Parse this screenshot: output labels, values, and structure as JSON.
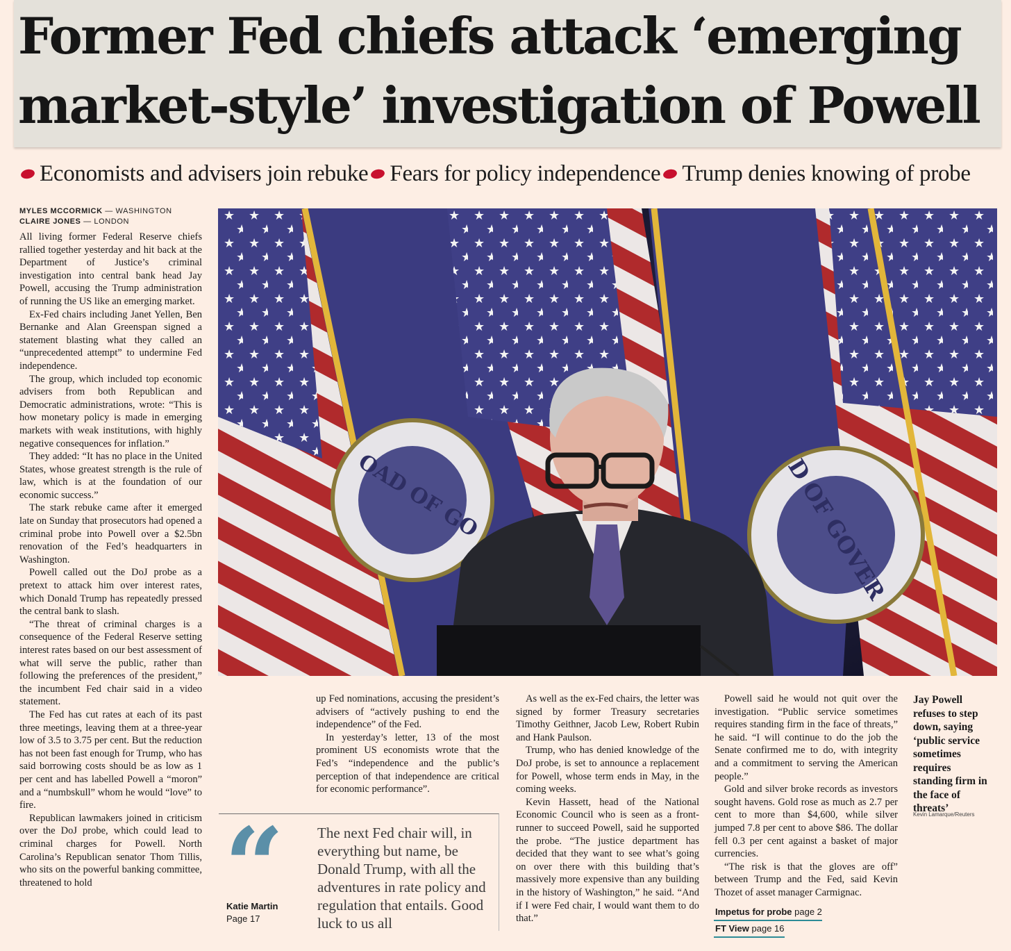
{
  "headline": {
    "line1": "Former Fed chiefs attack ‘emerging",
    "line2": "market-style’ investigation of Powell"
  },
  "standfirst": [
    "Economists and advisers join rebuke",
    "Fears for policy independence",
    "Trump denies knowing of probe"
  ],
  "byline": [
    {
      "name": "MYLES MCCORMICK",
      "place": "— WASHINGTON"
    },
    {
      "name": "CLAIRE JONES",
      "place": "— LONDON"
    }
  ],
  "column1": [
    "All living former Federal Reserve chiefs rallied together yesterday and hit back at the Department of Justice’s criminal investigation into central bank head Jay Powell, accusing the Trump administration of running the US like an emerging market.",
    "Ex-Fed chairs including Janet Yellen, Ben Bernanke and Alan Greenspan signed a statement blasting what they called an “unprecedented attempt” to undermine Fed independence.",
    "The group, which included top economic advisers from both Republican and Democratic administrations, wrote: “This is how monetary policy is made in emerging markets with weak institutions, with highly negative consequences for inflation.”",
    "They added: “It has no place in the United States, whose greatest strength is the rule of law, which is at the foundation of our economic success.”",
    "The stark rebuke came after it emerged late on Sunday that prosecutors had opened a criminal probe into Powell over a $2.5bn renovation of the Fed’s headquarters in Washington.",
    "Powell called out the DoJ probe as a pretext to attack him over interest rates, which Donald Trump has repeatedly pressed the central bank to slash.",
    "“The threat of criminal charges is a consequence of the Federal Reserve setting interest rates based on our best assessment of what will serve the public, rather than following the preferences of the president,” the incumbent Fed chair said in a video statement.",
    "The Fed has cut rates at each of its past three meetings, leaving them at a three-year low of 3.5 to 3.75 per cent. But the reduction has not been fast enough for Trump, who has said borrowing costs should be as low as 1 per cent and has labelled Powell a “moron” and a “numbskull” whom he would “love” to fire.",
    "Republican lawmakers joined in criticism over the DoJ probe, which could lead to criminal charges for Powell. North Carolina’s Republican senator Thom Tillis, who sits on the powerful banking committee, threatened to hold"
  ],
  "column2": [
    "up Fed nominations, accusing the president’s advisers of “actively pushing to end the independence” of the Fed.",
    "In yesterday’s letter, 13 of the most prominent US economists wrote that the Fed’s “independence and the public’s perception of that independence are critical for economic performance”."
  ],
  "pull_quote": {
    "text": "The next Fed chair will, in everything but name, be Donald Trump, with all the adventures in rate policy and regulation that entails. Good luck to us all",
    "author": "Katie Martin",
    "page": "Page 17"
  },
  "column3": [
    "As well as the ex-Fed chairs, the letter was signed by former Treasury secretaries Timothy Geithner, Jacob Lew, Robert Rubin and Hank Paulson.",
    "Trump, who has denied knowledge of the DoJ probe, is set to announce a replacement for Powell, whose term ends in May, in the coming weeks.",
    "Kevin Hassett, head of the National Economic Council who is seen as a front-runner to succeed Powell, said he supported the probe. “The justice department has decided that they want to see what’s going on over there with this building that’s massively more expensive than any building in the history of Washington,” he said. “And if I were Fed chair, I would want them to do that.”"
  ],
  "column4": [
    "Powell said he would not quit over the investigation. “Public service sometimes requires standing firm in the face of threats,” he said. “I will continue to do the job the Senate confirmed me to do, with integrity and a commitment to serving the American people.”",
    "Gold and silver broke records as investors sought havens. Gold rose as much as 2.7 per cent to more than $4,600, while silver jumped 7.8 per cent to above $86. The dollar fell 0.3 per cent against a basket of major currencies.",
    "“The risk is that the gloves are off” between Trump and the Fed, said Kevin Thozet of asset manager Carmignac."
  ],
  "refs": [
    {
      "label": "Impetus for probe",
      "page": "page 2"
    },
    {
      "label": "FT View",
      "page": "page 16"
    }
  ],
  "photo": {
    "caption": "Jay Powell refuses to step down, saying ‘public service sometimes requires standing firm in the face of threats’",
    "credit": "Kevin Lamarque/Reuters",
    "seal_text": [
      "OAD OF GO",
      "D OF GOVER"
    ]
  },
  "colors": {
    "background": "#fdeee4",
    "headline_band": "#e4e1da",
    "bullet_red": "#c8102e",
    "quote_blue": "#5b8fa8",
    "ref_underline": "#2d8b96",
    "flag_blue": "#3f3f86",
    "flag_red": "#b02a2c",
    "fringe_gold": "#e2b63a"
  }
}
